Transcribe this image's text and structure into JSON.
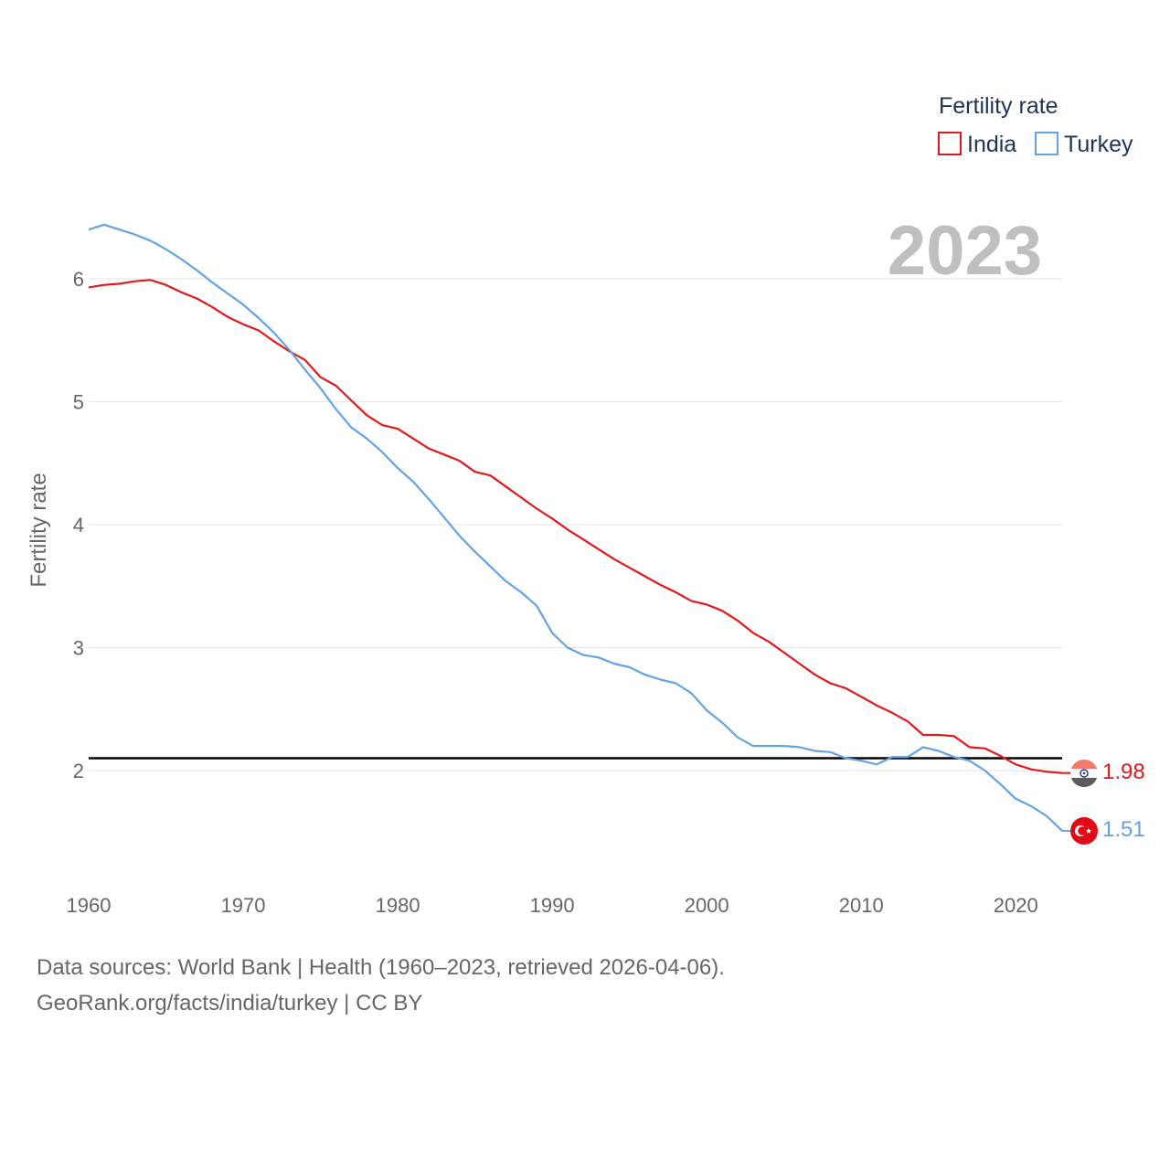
{
  "chart_data": {
    "type": "line",
    "ylabel": "Fertility rate",
    "xlabel": "",
    "xlim": [
      1960,
      2023
    ],
    "ylim": [
      1.2,
      6.8
    ],
    "x_ticks": [
      1960,
      1970,
      1980,
      1990,
      2000,
      2010,
      2020
    ],
    "y_ticks": [
      2,
      3,
      4,
      5,
      6
    ],
    "grid": true,
    "current_year": "2023",
    "reference_line": {
      "y": 2.1,
      "color": "#000000"
    },
    "legend": {
      "title": "Fertility rate",
      "placement": "top-right"
    },
    "x": [
      1960,
      1961,
      1962,
      1963,
      1964,
      1965,
      1966,
      1967,
      1968,
      1969,
      1970,
      1971,
      1972,
      1973,
      1974,
      1975,
      1976,
      1977,
      1978,
      1979,
      1980,
      1981,
      1982,
      1983,
      1984,
      1985,
      1986,
      1987,
      1988,
      1989,
      1990,
      1991,
      1992,
      1993,
      1994,
      1995,
      1996,
      1997,
      1998,
      1999,
      2000,
      2001,
      2002,
      2003,
      2004,
      2005,
      2006,
      2007,
      2008,
      2009,
      2010,
      2011,
      2012,
      2013,
      2014,
      2015,
      2016,
      2017,
      2018,
      2019,
      2020,
      2021,
      2022,
      2023
    ],
    "series": [
      {
        "name": "India",
        "color": "#e0191b",
        "end_label": "1.98",
        "values": [
          5.93,
          5.95,
          5.96,
          5.98,
          5.99,
          5.95,
          5.89,
          5.84,
          5.77,
          5.69,
          5.63,
          5.58,
          5.49,
          5.41,
          5.34,
          5.2,
          5.13,
          5.01,
          4.89,
          4.81,
          4.78,
          4.7,
          4.62,
          4.57,
          4.52,
          4.43,
          4.4,
          4.31,
          4.22,
          4.13,
          4.05,
          3.96,
          3.88,
          3.8,
          3.72,
          3.65,
          3.58,
          3.51,
          3.45,
          3.38,
          3.35,
          3.3,
          3.22,
          3.12,
          3.05,
          2.96,
          2.87,
          2.78,
          2.71,
          2.67,
          2.6,
          2.53,
          2.47,
          2.4,
          2.29,
          2.29,
          2.28,
          2.19,
          2.18,
          2.12,
          2.05,
          2.01,
          1.99,
          1.98
        ]
      },
      {
        "name": "Turkey",
        "color": "#63a3e4",
        "end_label": "1.51",
        "values": [
          6.4,
          6.44,
          6.4,
          6.36,
          6.31,
          6.24,
          6.16,
          6.07,
          5.97,
          5.88,
          5.79,
          5.68,
          5.56,
          5.42,
          5.26,
          5.11,
          4.94,
          4.79,
          4.7,
          4.59,
          4.46,
          4.35,
          4.21,
          4.06,
          3.91,
          3.78,
          3.66,
          3.54,
          3.45,
          3.34,
          3.12,
          3.0,
          2.94,
          2.92,
          2.87,
          2.84,
          2.78,
          2.74,
          2.71,
          2.63,
          2.49,
          2.39,
          2.27,
          2.2,
          2.2,
          2.2,
          2.19,
          2.16,
          2.15,
          2.1,
          2.08,
          2.05,
          2.11,
          2.11,
          2.19,
          2.16,
          2.11,
          2.08,
          2.0,
          1.89,
          1.77,
          1.71,
          1.63,
          1.51
        ]
      }
    ]
  },
  "footer": {
    "line1": "Data sources: World Bank | Health (1960–2023, retrieved 2026-04-06).",
    "line2": "GeoRank.org/facts/india/turkey | CC BY"
  }
}
